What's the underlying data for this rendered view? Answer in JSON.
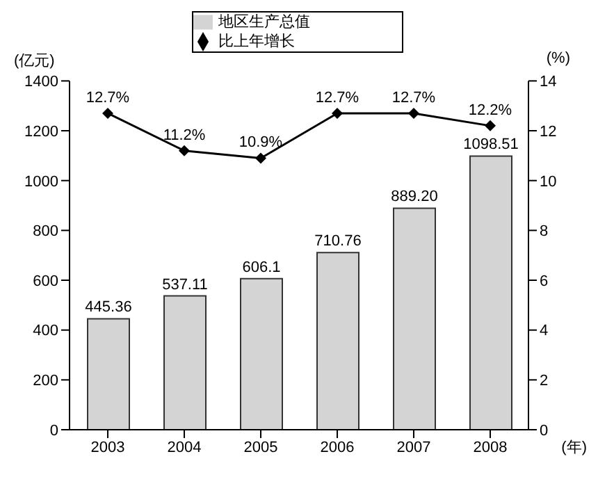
{
  "chart_data": {
    "type": "bar",
    "xlabel": "(年)",
    "ylabel": "(亿元)",
    "y2label": "(%)",
    "categories": [
      "2003",
      "2004",
      "2005",
      "2006",
      "2007",
      "2008"
    ],
    "series": [
      {
        "name": "地区生产总值",
        "color": "#d4d4d4",
        "values": [
          445.36,
          537.11,
          606.1,
          710.76,
          889.2,
          1098.51
        ],
        "value_labels": [
          "445.36",
          "537.11",
          "606.1",
          "710.76",
          "889.20",
          "1098.51"
        ]
      },
      {
        "name": "比上年增长",
        "type": "line",
        "axis": "y2",
        "color": "#000000",
        "marker": "diamond",
        "values": [
          12.7,
          11.2,
          10.9,
          12.7,
          12.7,
          12.2
        ],
        "value_labels": [
          "12.7%",
          "11.2%",
          "10.9%",
          "12.7%",
          "12.7%",
          "12.2%"
        ]
      }
    ],
    "ylim": [
      0,
      1400
    ],
    "yticks": [
      0,
      200,
      400,
      600,
      800,
      1000,
      1200,
      1400
    ],
    "y2lim": [
      0,
      14
    ],
    "y2ticks": [
      0,
      2,
      4,
      6,
      8,
      10,
      12,
      14
    ],
    "grid": false,
    "legend": "top"
  }
}
